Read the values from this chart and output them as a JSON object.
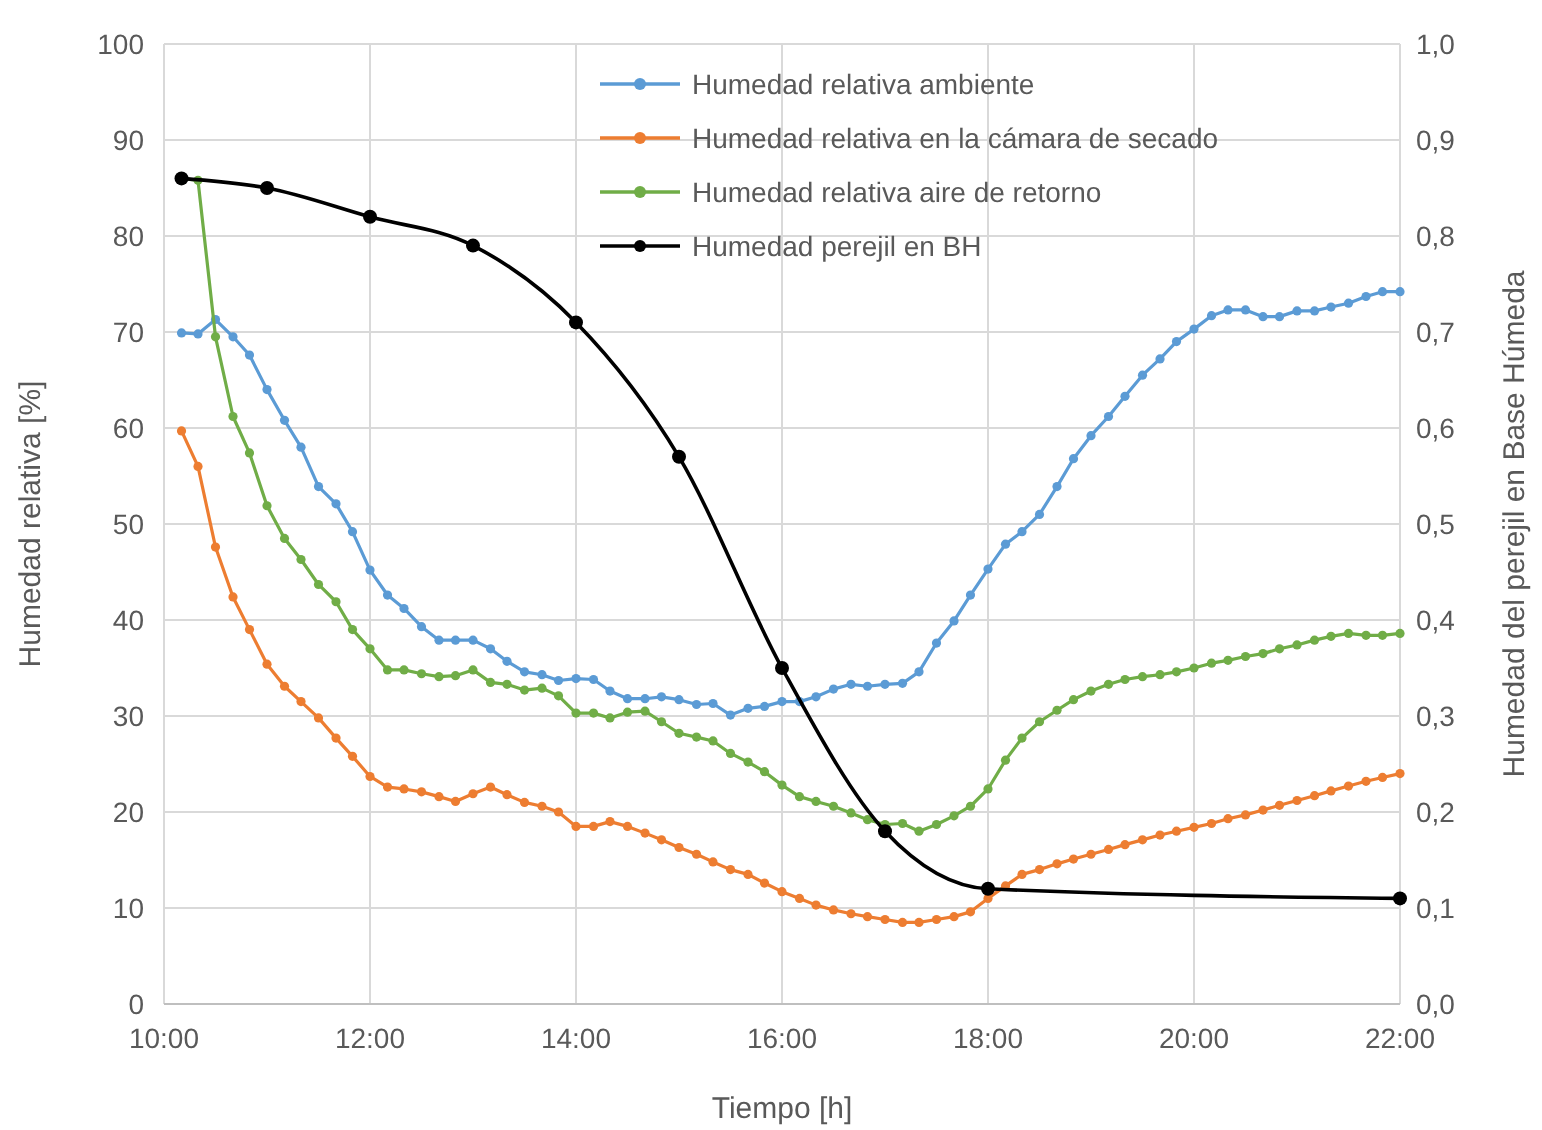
{
  "chart_data": {
    "type": "line",
    "xlabel": "Tiempo [h]",
    "ylabel": "Humedad relativa [%]",
    "y2label": "Humedad del perejil en Base Húmeda",
    "x": [
      10.17,
      10.33,
      10.5,
      10.67,
      10.83,
      11,
      11.17,
      11.33,
      11.5,
      11.67,
      11.83,
      12,
      12.17,
      12.33,
      12.5,
      12.67,
      12.83,
      13,
      13.17,
      13.33,
      13.5,
      13.67,
      13.83,
      14,
      14.17,
      14.33,
      14.5,
      14.67,
      14.83,
      15,
      15.17,
      15.33,
      15.5,
      15.67,
      15.83,
      16,
      16.17,
      16.33,
      16.5,
      16.67,
      16.83,
      17,
      17.17,
      17.33,
      17.5,
      17.67,
      17.83,
      18,
      18.17,
      18.33,
      18.5,
      18.67,
      18.83,
      19,
      19.17,
      19.33,
      19.5,
      19.67,
      19.83,
      20,
      20.17,
      20.33,
      20.5,
      20.67,
      20.83,
      21,
      21.17,
      21.33,
      21.5,
      21.67,
      21.83,
      22
    ],
    "xlim": [
      10,
      22
    ],
    "xticks": [
      {
        "value": 10,
        "label": "10:00"
      },
      {
        "value": 12,
        "label": "12:00"
      },
      {
        "value": 14,
        "label": "14:00"
      },
      {
        "value": 16,
        "label": "16:00"
      },
      {
        "value": 18,
        "label": "18:00"
      },
      {
        "value": 20,
        "label": "20:00"
      },
      {
        "value": 22,
        "label": "22:00"
      }
    ],
    "ylim": [
      0,
      100
    ],
    "yticks": [
      0,
      10,
      20,
      30,
      40,
      50,
      60,
      70,
      80,
      90,
      100
    ],
    "y2lim": [
      0,
      1
    ],
    "y2ticks": [
      {
        "value": 0,
        "label": "0,0"
      },
      {
        "value": 0.1,
        "label": "0,1"
      },
      {
        "value": 0.2,
        "label": "0,2"
      },
      {
        "value": 0.3,
        "label": "0,3"
      },
      {
        "value": 0.4,
        "label": "0,4"
      },
      {
        "value": 0.5,
        "label": "0,5"
      },
      {
        "value": 0.6,
        "label": "0,6"
      },
      {
        "value": 0.7,
        "label": "0,7"
      },
      {
        "value": 0.8,
        "label": "0,8"
      },
      {
        "value": 0.9,
        "label": "0,9"
      },
      {
        "value": 1,
        "label": "1,0"
      }
    ],
    "grid": true,
    "legend": "top",
    "marker": "circle",
    "line_style": "solid",
    "series": [
      {
        "name": "Humedad relativa ambiente",
        "color": "#5b9bd5",
        "values": [
          69.9,
          69.8,
          71.3,
          69.5,
          67.6,
          64.0,
          60.8,
          58.0,
          53.9,
          52.1,
          49.2,
          45.2,
          42.6,
          41.2,
          39.3,
          37.9,
          37.9,
          37.9,
          37.0,
          35.7,
          34.6,
          34.3,
          33.7,
          33.9,
          33.8,
          32.6,
          31.8,
          31.8,
          32.0,
          31.7,
          31.2,
          31.3,
          30.1,
          30.8,
          31.0,
          31.5,
          31.5,
          32.0,
          32.8,
          33.3,
          33.1,
          33.3,
          33.4,
          34.6,
          37.6,
          39.9,
          42.6,
          45.3,
          47.9,
          49.2,
          51.0,
          53.9,
          56.8,
          59.2,
          61.2,
          63.3,
          65.5,
          67.2,
          69.0,
          70.3,
          71.7,
          72.3,
          72.3,
          71.6,
          71.6,
          72.2,
          72.2,
          72.6,
          73.0,
          73.7,
          74.2,
          74.2
        ]
      },
      {
        "name": "Humedad relativa en la cámara de secado",
        "color": "#ed7d31",
        "values": [
          59.7,
          56.0,
          47.6,
          42.4,
          39.0,
          35.4,
          33.1,
          31.5,
          29.8,
          27.7,
          25.8,
          23.7,
          22.6,
          22.4,
          22.1,
          21.6,
          21.1,
          21.9,
          22.6,
          21.8,
          21.0,
          20.6,
          20.0,
          18.5,
          18.5,
          19.0,
          18.5,
          17.8,
          17.1,
          16.3,
          15.6,
          14.8,
          14.0,
          13.5,
          12.6,
          11.7,
          11.0,
          10.3,
          9.8,
          9.4,
          9.1,
          8.8,
          8.5,
          8.5,
          8.8,
          9.1,
          9.6,
          11.0,
          12.3,
          13.5,
          14.0,
          14.6,
          15.1,
          15.6,
          16.1,
          16.6,
          17.1,
          17.6,
          18.0,
          18.4,
          18.8,
          19.3,
          19.7,
          20.2,
          20.7,
          21.2,
          21.7,
          22.2,
          22.7,
          23.2,
          23.6,
          24.0
        ]
      },
      {
        "name": "Humedad relativa aire de retorno",
        "color": "#70ad47",
        "values": [
          86.0,
          85.8,
          69.5,
          61.2,
          57.4,
          51.9,
          48.5,
          46.3,
          43.7,
          41.9,
          39.0,
          37.0,
          34.8,
          34.8,
          34.4,
          34.1,
          34.2,
          34.8,
          33.5,
          33.3,
          32.7,
          32.9,
          32.1,
          30.3,
          30.3,
          29.8,
          30.4,
          30.5,
          29.4,
          28.2,
          27.8,
          27.4,
          26.1,
          25.2,
          24.2,
          22.8,
          21.6,
          21.1,
          20.6,
          19.9,
          19.2,
          18.7,
          18.8,
          18.0,
          18.7,
          19.6,
          20.6,
          22.4,
          25.4,
          27.7,
          29.4,
          30.6,
          31.7,
          32.6,
          33.3,
          33.8,
          34.1,
          34.3,
          34.6,
          35.0,
          35.5,
          35.8,
          36.2,
          36.5,
          37.0,
          37.4,
          37.9,
          38.3,
          38.6,
          38.4,
          38.4,
          38.6
        ]
      },
      {
        "name": "Humedad perejil en BH",
        "color": "#000000",
        "axis": "y2",
        "x": [
          10.17,
          11,
          12,
          13,
          14,
          15,
          16,
          17,
          18,
          22
        ],
        "values": [
          0.86,
          0.85,
          0.82,
          0.79,
          0.71,
          0.57,
          0.35,
          0.18,
          0.12,
          0.11
        ]
      }
    ]
  }
}
